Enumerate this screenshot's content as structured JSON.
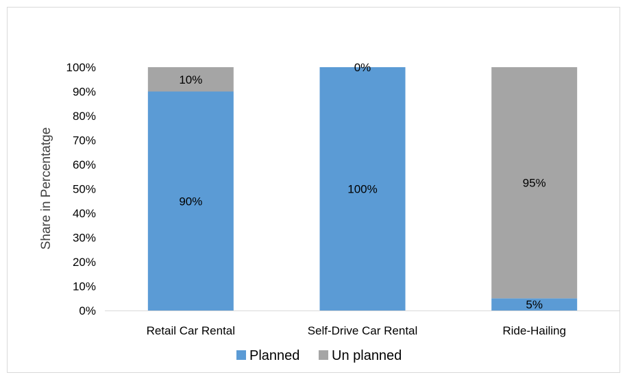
{
  "chart_data": {
    "type": "bar",
    "stacked": true,
    "title": "",
    "xlabel": "",
    "ylabel": "Share  in Percentatge",
    "ylim": [
      0,
      100
    ],
    "yticks": [
      "0%",
      "10%",
      "20%",
      "30%",
      "40%",
      "50%",
      "60%",
      "70%",
      "80%",
      "90%",
      "100%"
    ],
    "categories": [
      "Retail Car Rental",
      "Self-Drive Car Rental",
      "Ride-Hailing"
    ],
    "series": [
      {
        "name": "Planned",
        "values": [
          90,
          100,
          5
        ],
        "labels": [
          "90%",
          "100%",
          "5%"
        ],
        "color": "#5b9bd5"
      },
      {
        "name": "Un planned",
        "values": [
          10,
          0,
          95
        ],
        "labels": [
          "10%",
          "0%",
          "95%"
        ],
        "color": "#a5a5a5"
      }
    ],
    "legend_position": "bottom",
    "grid": false
  }
}
